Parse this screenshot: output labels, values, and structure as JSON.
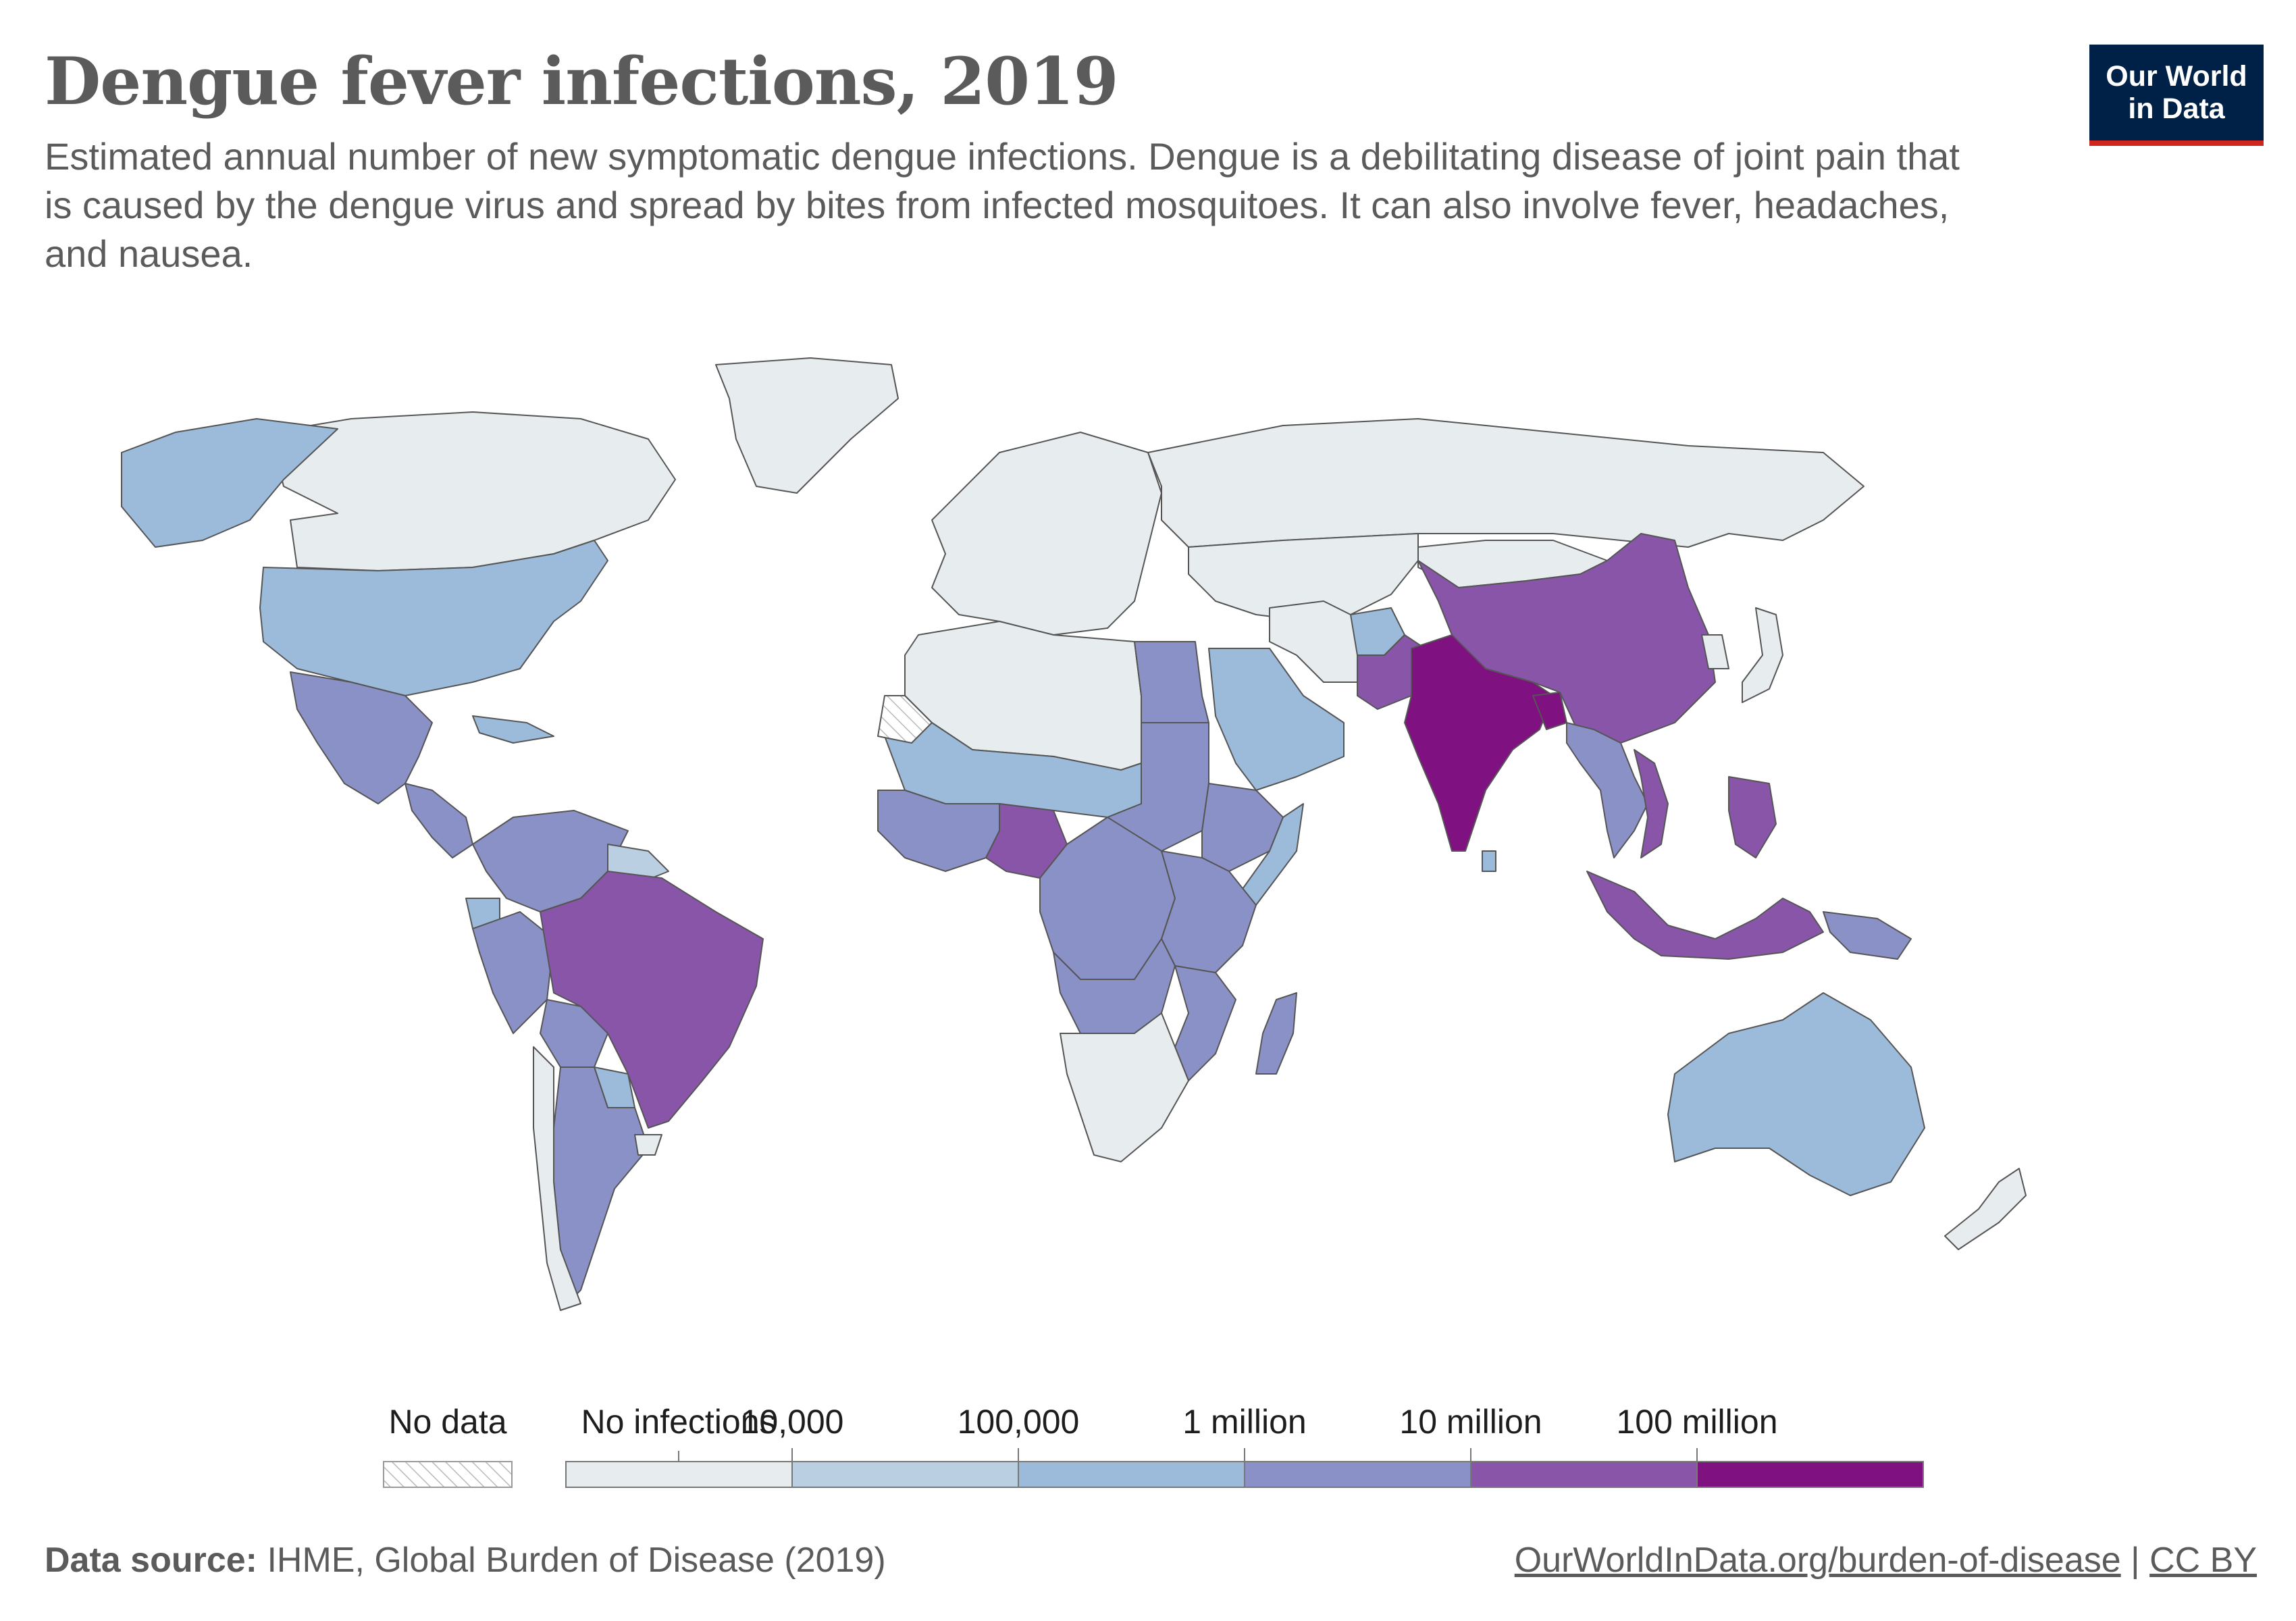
{
  "header": {
    "title": "Dengue fever infections, 2019",
    "subtitle": "Estimated annual number of new symptomatic dengue infections. Dengue is a debilitating disease of joint pain that is caused by the dengue virus and spread by bites from infected mosquitoes. It can also involve fever, headaches, and nausea.",
    "logo_line1": "Our World",
    "logo_line2": "in Data"
  },
  "legend": {
    "no_data_label": "No data",
    "bins": [
      {
        "label": "No infections",
        "color": "#e7ecee"
      },
      {
        "label": "",
        "color": "#bbcfe2"
      },
      {
        "label": "10,000",
        "color": "#9cbbda"
      },
      {
        "label": "100,000",
        "color": "#8a91c6"
      },
      {
        "label": "1 million",
        "color": "#8955a8"
      },
      {
        "label": "10 million",
        "color": "#7f1180"
      },
      {
        "label": "100 million",
        "color": ""
      }
    ],
    "no_data_color": "#ffffff"
  },
  "map_data": {
    "year": 2019,
    "palette_level": {
      "no_infections": "#e7ecee",
      "lt_10000": "#bbcfe2",
      "10k_100k": "#9cbbda",
      "100k_1m": "#8a91c6",
      "1m_10m": "#8955a8",
      "10m_100m": "#7f1180"
    },
    "regions": [
      {
        "name": "Canada",
        "level": "no_infections"
      },
      {
        "name": "Greenland",
        "level": "no_infections"
      },
      {
        "name": "Alaska",
        "level": "10k_100k"
      },
      {
        "name": "United States",
        "level": "10k_100k"
      },
      {
        "name": "Mexico",
        "level": "100k_1m"
      },
      {
        "name": "Central America",
        "level": "100k_1m"
      },
      {
        "name": "Caribbean",
        "level": "10k_100k"
      },
      {
        "name": "Colombia/Venezuela",
        "level": "100k_1m"
      },
      {
        "name": "Guianas",
        "level": "lt_10000"
      },
      {
        "name": "Ecuador",
        "level": "10k_100k"
      },
      {
        "name": "Peru",
        "level": "100k_1m"
      },
      {
        "name": "Brazil",
        "level": "1m_10m"
      },
      {
        "name": "Bolivia",
        "level": "100k_1m"
      },
      {
        "name": "Paraguay",
        "level": "10k_100k"
      },
      {
        "name": "Argentina",
        "level": "100k_1m"
      },
      {
        "name": "Chile",
        "level": "no_infections"
      },
      {
        "name": "Uruguay",
        "level": "no_infections"
      },
      {
        "name": "Europe",
        "level": "no_infections"
      },
      {
        "name": "Russia",
        "level": "no_infections"
      },
      {
        "name": "Central Asia",
        "level": "no_infections"
      },
      {
        "name": "Mongolia",
        "level": "no_infections"
      },
      {
        "name": "North Africa",
        "level": "no_infections"
      },
      {
        "name": "Egypt",
        "level": "100k_1m"
      },
      {
        "name": "Arabian Peninsula",
        "level": "10k_100k"
      },
      {
        "name": "Iran",
        "level": "no_infections"
      },
      {
        "name": "Afghanistan",
        "level": "10k_100k"
      },
      {
        "name": "Pakistan",
        "level": "1m_10m"
      },
      {
        "name": "India",
        "level": "10m_100m"
      },
      {
        "name": "Bangladesh",
        "level": "10m_100m"
      },
      {
        "name": "China",
        "level": "1m_10m"
      },
      {
        "name": "Southeast Asia",
        "level": "100k_1m"
      },
      {
        "name": "Vietnam",
        "level": "1m_10m"
      },
      {
        "name": "Philippines",
        "level": "1m_10m"
      },
      {
        "name": "Indonesia",
        "level": "1m_10m"
      },
      {
        "name": "Papua New Guinea",
        "level": "100k_1m"
      },
      {
        "name": "Japan",
        "level": "no_infections"
      },
      {
        "name": "Korea",
        "level": "no_infections"
      },
      {
        "name": "Sahel",
        "level": "10k_100k"
      },
      {
        "name": "West Africa",
        "level": "100k_1m"
      },
      {
        "name": "Nigeria",
        "level": "1m_10m"
      },
      {
        "name": "Sudan/South Sudan",
        "level": "100k_1m"
      },
      {
        "name": "Ethiopia",
        "level": "100k_1m"
      },
      {
        "name": "Somalia",
        "level": "10k_100k"
      },
      {
        "name": "Central Africa",
        "level": "100k_1m"
      },
      {
        "name": "East Africa",
        "level": "100k_1m"
      },
      {
        "name": "Angola/Zambia",
        "level": "100k_1m"
      },
      {
        "name": "Mozambique",
        "level": "100k_1m"
      },
      {
        "name": "Madagascar",
        "level": "100k_1m"
      },
      {
        "name": "Southern Africa",
        "level": "no_infections"
      },
      {
        "name": "Sri Lanka",
        "level": "10k_100k"
      },
      {
        "name": "Australia",
        "level": "10k_100k"
      },
      {
        "name": "New Zealand",
        "level": "no_infections"
      },
      {
        "name": "Western Sahara",
        "level": "no_data"
      }
    ]
  },
  "footer": {
    "source_label": "Data source:",
    "source_text": " IHME, Global Burden of Disease (2019)",
    "link_text": "OurWorldInData.org/burden-of-disease",
    "separator": " | ",
    "license": "CC BY"
  }
}
